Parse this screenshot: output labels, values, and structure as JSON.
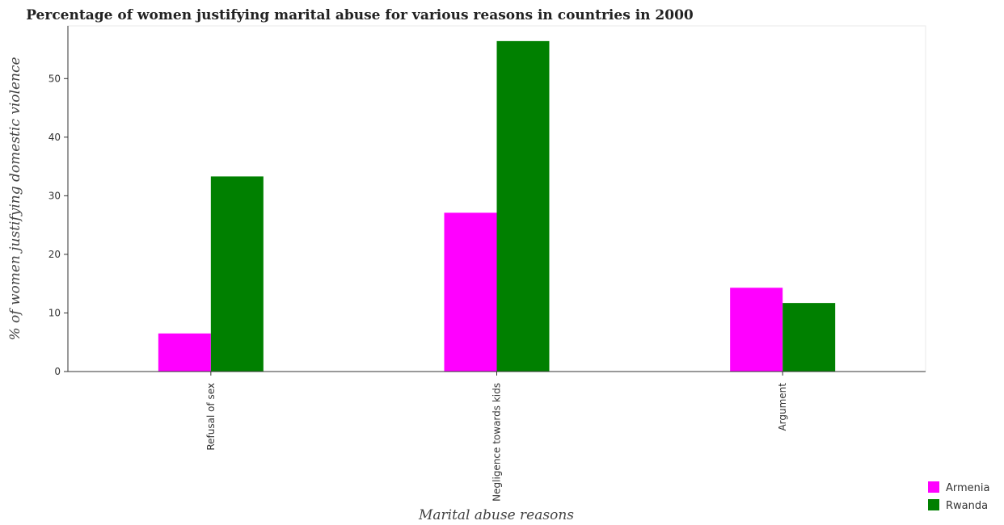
{
  "chart_data": {
    "type": "bar",
    "title": "Percentage of women justifying marital abuse for various reasons in countries in 2000",
    "xlabel": "Marital abuse reasons",
    "ylabel": "% of women justifying domestic violence",
    "categories": [
      "Refusal of sex",
      "Negligence towards kids",
      "Argument"
    ],
    "series": [
      {
        "name": "Armenia",
        "color": "#ff00ff",
        "values": [
          6.5,
          27.1,
          14.3
        ]
      },
      {
        "name": "Rwanda",
        "color": "#008000",
        "values": [
          33.3,
          56.4,
          11.7
        ]
      }
    ],
    "ylim": [
      0,
      59
    ],
    "yticks": [
      0,
      10,
      20,
      30,
      40,
      50
    ],
    "grid": false,
    "legend": "bottom-right"
  }
}
